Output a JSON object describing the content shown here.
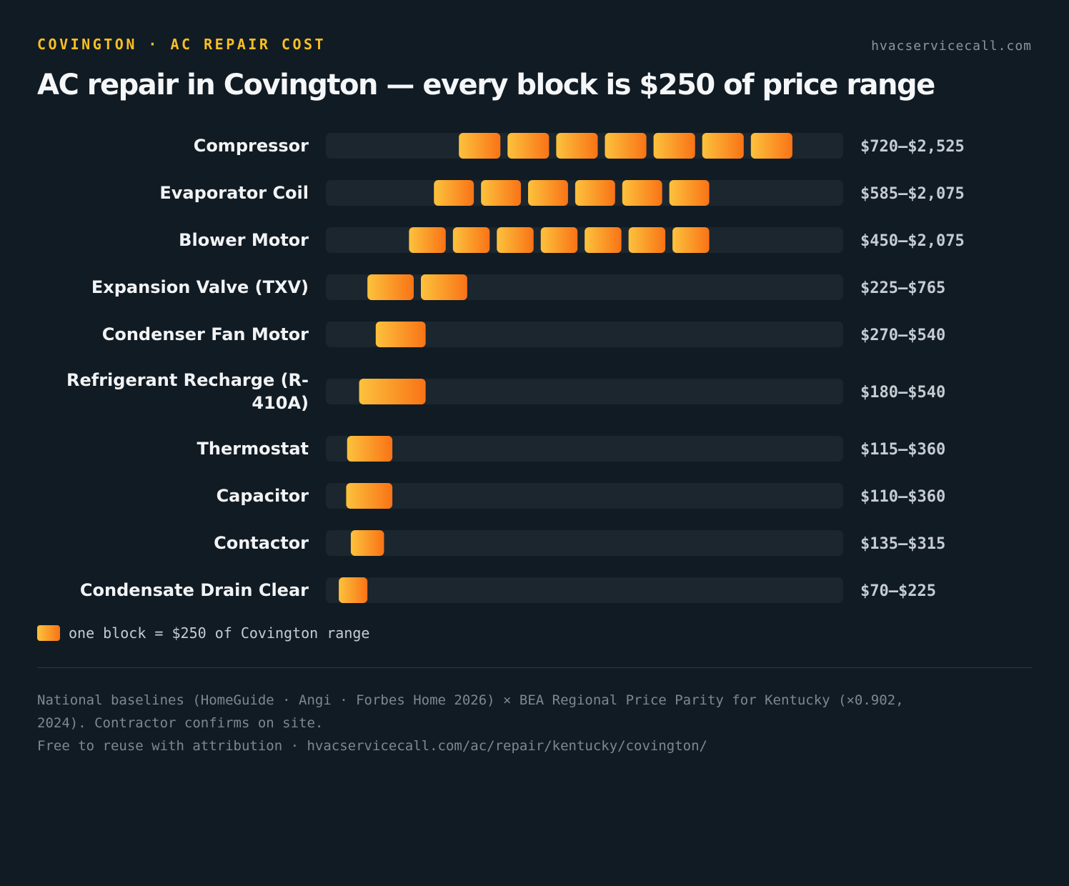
{
  "header": {
    "eyebrow": "COVINGTON · AC REPAIR COST",
    "site": "hvacservicecall.com",
    "title": "AC repair in Covington — every block is $250 of price range"
  },
  "colors": {
    "background": "#111b23",
    "track": "#1b262f",
    "block_start": "#fcc23d",
    "block_end": "#f97316",
    "eyebrow": "#fbbf24"
  },
  "chart_data": {
    "type": "bar",
    "unit": "USD",
    "block_value": 250,
    "xlim": [
      0,
      2800
    ],
    "grid": false,
    "items": [
      {
        "label": "Compressor",
        "low": 720,
        "high": 2525,
        "range_text": "$720–$2,525"
      },
      {
        "label": "Evaporator Coil",
        "low": 585,
        "high": 2075,
        "range_text": "$585–$2,075"
      },
      {
        "label": "Blower Motor",
        "low": 450,
        "high": 2075,
        "range_text": "$450–$2,075"
      },
      {
        "label": "Expansion Valve (TXV)",
        "low": 225,
        "high": 765,
        "range_text": "$225–$765"
      },
      {
        "label": "Condenser Fan Motor",
        "low": 270,
        "high": 540,
        "range_text": "$270–$540"
      },
      {
        "label": "Refrigerant Recharge (R-410A)",
        "label_lines": [
          "Refrigerant Recharge (R-",
          "410A)"
        ],
        "low": 180,
        "high": 540,
        "range_text": "$180–$540"
      },
      {
        "label": "Thermostat",
        "low": 115,
        "high": 360,
        "range_text": "$115–$360"
      },
      {
        "label": "Capacitor",
        "low": 110,
        "high": 360,
        "range_text": "$110–$360"
      },
      {
        "label": "Contactor",
        "low": 135,
        "high": 315,
        "range_text": "$135–$315"
      },
      {
        "label": "Condensate Drain Clear",
        "low": 70,
        "high": 225,
        "range_text": "$70–$225"
      }
    ]
  },
  "legend": {
    "text": "one block = $250 of Covington range"
  },
  "footer": {
    "line1": "National baselines (HomeGuide · Angi · Forbes Home 2026) × BEA Regional Price Parity for Kentucky (×0.902,",
    "line2": "2024). Contractor confirms on site.",
    "line3": "Free to reuse with attribution · hvacservicecall.com/ac/repair/kentucky/covington/"
  }
}
